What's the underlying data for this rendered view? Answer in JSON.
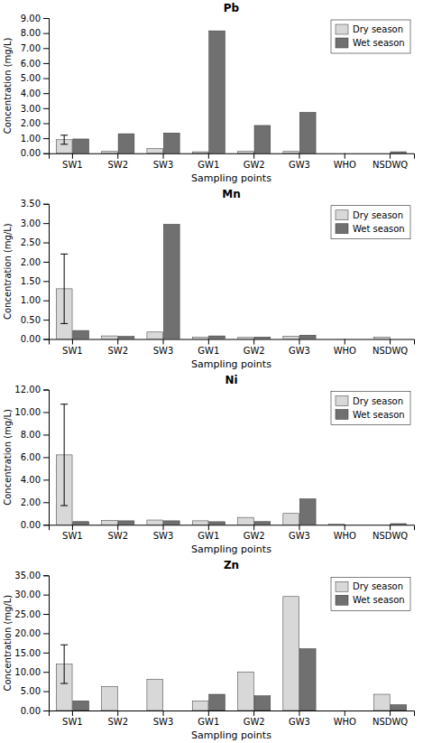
{
  "chart_data": [
    {
      "type": "bar",
      "title": "Pb",
      "xlabel": "Sampling points",
      "ylabel": "Concentration (mg/L)",
      "categories": [
        "SW1",
        "SW2",
        "SW3",
        "GW1",
        "GW2",
        "GW3",
        "WHO",
        "NSDWQ"
      ],
      "series": [
        {
          "name": "Dry season",
          "color": "#d8d8d8",
          "values": [
            0.9,
            0.12,
            0.32,
            0.1,
            0.12,
            0.12,
            0.0,
            0.0
          ],
          "errors": [
            0.3,
            0.0,
            0.0,
            0.0,
            0.0,
            0.0,
            0.0,
            0.0
          ]
        },
        {
          "name": "Wet season",
          "color": "#707070",
          "values": [
            0.95,
            1.3,
            1.35,
            8.15,
            1.85,
            2.72,
            0.0,
            0.1
          ],
          "errors": [
            0.0,
            0.0,
            0.0,
            0.0,
            0.0,
            0.0,
            0.0,
            0.0
          ]
        }
      ],
      "ylim": [
        0,
        9.0
      ],
      "yticks": [
        {
          "value": 0,
          "label": "0.00"
        },
        {
          "value": 1,
          "label": "1.00"
        },
        {
          "value": 2,
          "label": "2.00"
        },
        {
          "value": 3,
          "label": "3.00"
        },
        {
          "value": 4,
          "label": "4.00"
        },
        {
          "value": 5,
          "label": "5.00"
        },
        {
          "value": 6,
          "label": "6.00"
        },
        {
          "value": 7,
          "label": "7.00"
        },
        {
          "value": 8,
          "label": "8.00"
        },
        {
          "value": 9,
          "label": "9.00"
        }
      ],
      "legend": "upper right",
      "grid": false
    },
    {
      "type": "bar",
      "title": "Mn",
      "xlabel": "Sampling points",
      "ylabel": "Concentration (mg/L)",
      "categories": [
        "SW1",
        "SW2",
        "SW3",
        "GW1",
        "GW2",
        "GW3",
        "WHO",
        "NSDWQ"
      ],
      "series": [
        {
          "name": "Dry season",
          "color": "#d8d8d8",
          "values": [
            1.3,
            0.08,
            0.18,
            0.05,
            0.04,
            0.07,
            0.0,
            0.05
          ],
          "errors": [
            0.9,
            0.0,
            0.0,
            0.0,
            0.0,
            0.0,
            0.0,
            0.0
          ]
        },
        {
          "name": "Wet season",
          "color": "#707070",
          "values": [
            0.22,
            0.07,
            2.97,
            0.08,
            0.05,
            0.1,
            0.0,
            0.0
          ],
          "errors": [
            0.0,
            0.0,
            0.0,
            0.0,
            0.0,
            0.0,
            0.0,
            0.0
          ]
        }
      ],
      "ylim": [
        0,
        3.5
      ],
      "yticks": [
        {
          "value": 0,
          "label": "0.00"
        },
        {
          "value": 0.5,
          "label": "0.50"
        },
        {
          "value": 1,
          "label": "1.00"
        },
        {
          "value": 1.5,
          "label": "1.50"
        },
        {
          "value": 2,
          "label": "2.00"
        },
        {
          "value": 2.5,
          "label": "2.50"
        },
        {
          "value": 3,
          "label": "3.00"
        },
        {
          "value": 3.5,
          "label": "3.50"
        }
      ],
      "legend": "upper right",
      "grid": false
    },
    {
      "type": "bar",
      "title": "Ni",
      "xlabel": "Sampling points",
      "ylabel": "Concentration (mg/L)",
      "categories": [
        "SW1",
        "SW2",
        "SW3",
        "GW1",
        "GW2",
        "GW3",
        "WHO",
        "NSDWQ"
      ],
      "series": [
        {
          "name": "Dry season",
          "color": "#d8d8d8",
          "values": [
            6.2,
            0.4,
            0.42,
            0.35,
            0.65,
            1.0,
            0.05,
            0.0
          ],
          "errors": [
            4.5,
            0.0,
            0.0,
            0.0,
            0.0,
            0.0,
            0.0,
            0.0
          ]
        },
        {
          "name": "Wet season",
          "color": "#707070",
          "values": [
            0.28,
            0.35,
            0.35,
            0.27,
            0.28,
            2.3,
            0.0,
            0.1
          ],
          "errors": [
            0.0,
            0.0,
            0.0,
            0.0,
            0.0,
            0.0,
            0.0,
            0.0
          ]
        }
      ],
      "ylim": [
        0,
        12.0
      ],
      "yticks": [
        {
          "value": 0,
          "label": "0.00"
        },
        {
          "value": 2,
          "label": "2.00"
        },
        {
          "value": 4,
          "label": "4.00"
        },
        {
          "value": 6,
          "label": "6.00"
        },
        {
          "value": 8,
          "label": "8.00"
        },
        {
          "value": 10,
          "label": "10.00"
        },
        {
          "value": 12,
          "label": "12.00"
        }
      ],
      "legend": "upper right",
      "grid": false
    },
    {
      "type": "bar",
      "title": "Zn",
      "xlabel": "Sampling points",
      "ylabel": "Concentration (mg/L)",
      "categories": [
        "SW1",
        "SW2",
        "SW3",
        "GW1",
        "GW2",
        "GW3",
        "WHO",
        "NSDWQ"
      ],
      "series": [
        {
          "name": "Dry season",
          "color": "#d8d8d8",
          "values": [
            12.0,
            6.2,
            8.1,
            2.5,
            10.0,
            29.5,
            0.0,
            4.2
          ],
          "errors": [
            5.0,
            0.0,
            0.0,
            0.0,
            0.0,
            0.0,
            0.0,
            0.0
          ]
        },
        {
          "name": "Wet season",
          "color": "#707070",
          "values": [
            2.5,
            0.0,
            0.0,
            4.2,
            3.8,
            16.0,
            0.0,
            1.5
          ],
          "errors": [
            0.0,
            0.0,
            0.0,
            0.0,
            0.0,
            0.0,
            0.0,
            0.0
          ]
        }
      ],
      "ylim": [
        0,
        35.0
      ],
      "yticks": [
        {
          "value": 0,
          "label": "0.00"
        },
        {
          "value": 5,
          "label": "5.00"
        },
        {
          "value": 10,
          "label": "10.00"
        },
        {
          "value": 15,
          "label": "15.00"
        },
        {
          "value": 20,
          "label": "20.00"
        },
        {
          "value": 25,
          "label": "25.00"
        },
        {
          "value": 30,
          "label": "30.00"
        },
        {
          "value": 35,
          "label": "35.00"
        }
      ],
      "legend": "upper right",
      "grid": false
    }
  ]
}
